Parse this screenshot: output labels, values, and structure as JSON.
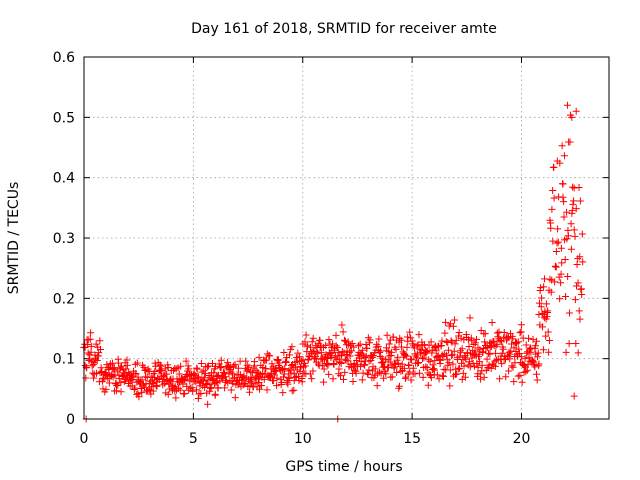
{
  "chart_data": {
    "type": "scatter",
    "title": "Day 161 of 2018, SRMTID for receiver amte",
    "xlabel": "GPS time / hours",
    "ylabel": "SRMTID / TECUs",
    "xlim": [
      0,
      24
    ],
    "ylim": [
      0,
      0.6
    ],
    "grid": true,
    "marker": "+",
    "series_color": "#ff0000",
    "xticks": [
      0,
      5,
      10,
      15,
      20
    ],
    "xtick_labels": [
      "0",
      "5",
      "10",
      "15",
      "20"
    ],
    "yticks": [
      0,
      0.1,
      0.2,
      0.3,
      0.4,
      0.5,
      0.6
    ],
    "ytick_labels": [
      "0",
      "0.1",
      "0.2",
      "0.3",
      "0.4",
      "0.5",
      "0.6"
    ],
    "segments": [
      {
        "x": [
          0.0,
          0.3
        ],
        "center": 0.11,
        "spread": 0.035
      },
      {
        "x": [
          0.3,
          0.8
        ],
        "center": 0.1,
        "spread": 0.03
      },
      {
        "x": [
          0.8,
          2.0
        ],
        "center": 0.075,
        "spread": 0.025
      },
      {
        "x": [
          2.0,
          4.0
        ],
        "center": 0.065,
        "spread": 0.025
      },
      {
        "x": [
          4.0,
          6.0
        ],
        "center": 0.065,
        "spread": 0.025
      },
      {
        "x": [
          6.0,
          8.0
        ],
        "center": 0.07,
        "spread": 0.025
      },
      {
        "x": [
          8.0,
          10.0
        ],
        "center": 0.08,
        "spread": 0.03
      },
      {
        "x": [
          10.0,
          12.0
        ],
        "center": 0.1,
        "spread": 0.035
      },
      {
        "x": [
          12.0,
          14.0
        ],
        "center": 0.1,
        "spread": 0.035
      },
      {
        "x": [
          14.0,
          16.0
        ],
        "center": 0.1,
        "spread": 0.04
      },
      {
        "x": [
          16.0,
          18.0
        ],
        "center": 0.11,
        "spread": 0.04
      },
      {
        "x": [
          18.0,
          20.0
        ],
        "center": 0.11,
        "spread": 0.04
      },
      {
        "x": [
          20.0,
          20.8
        ],
        "center": 0.1,
        "spread": 0.035
      },
      {
        "x": [
          20.8,
          21.3
        ],
        "center": 0.18,
        "spread": 0.06
      },
      {
        "x": [
          21.3,
          21.9
        ],
        "center": 0.3,
        "spread": 0.12
      },
      {
        "x": [
          21.9,
          22.4
        ],
        "center": 0.32,
        "spread": 0.18
      },
      {
        "x": [
          22.4,
          22.8
        ],
        "center": 0.25,
        "spread": 0.15
      }
    ],
    "notable_points": [
      {
        "x": 22.1,
        "y": 0.52
      },
      {
        "x": 22.3,
        "y": 0.5
      },
      {
        "x": 22.5,
        "y": 0.51
      },
      {
        "x": 0.1,
        "y": 0.0
      },
      {
        "x": 11.6,
        "y": 0.0
      }
    ]
  }
}
